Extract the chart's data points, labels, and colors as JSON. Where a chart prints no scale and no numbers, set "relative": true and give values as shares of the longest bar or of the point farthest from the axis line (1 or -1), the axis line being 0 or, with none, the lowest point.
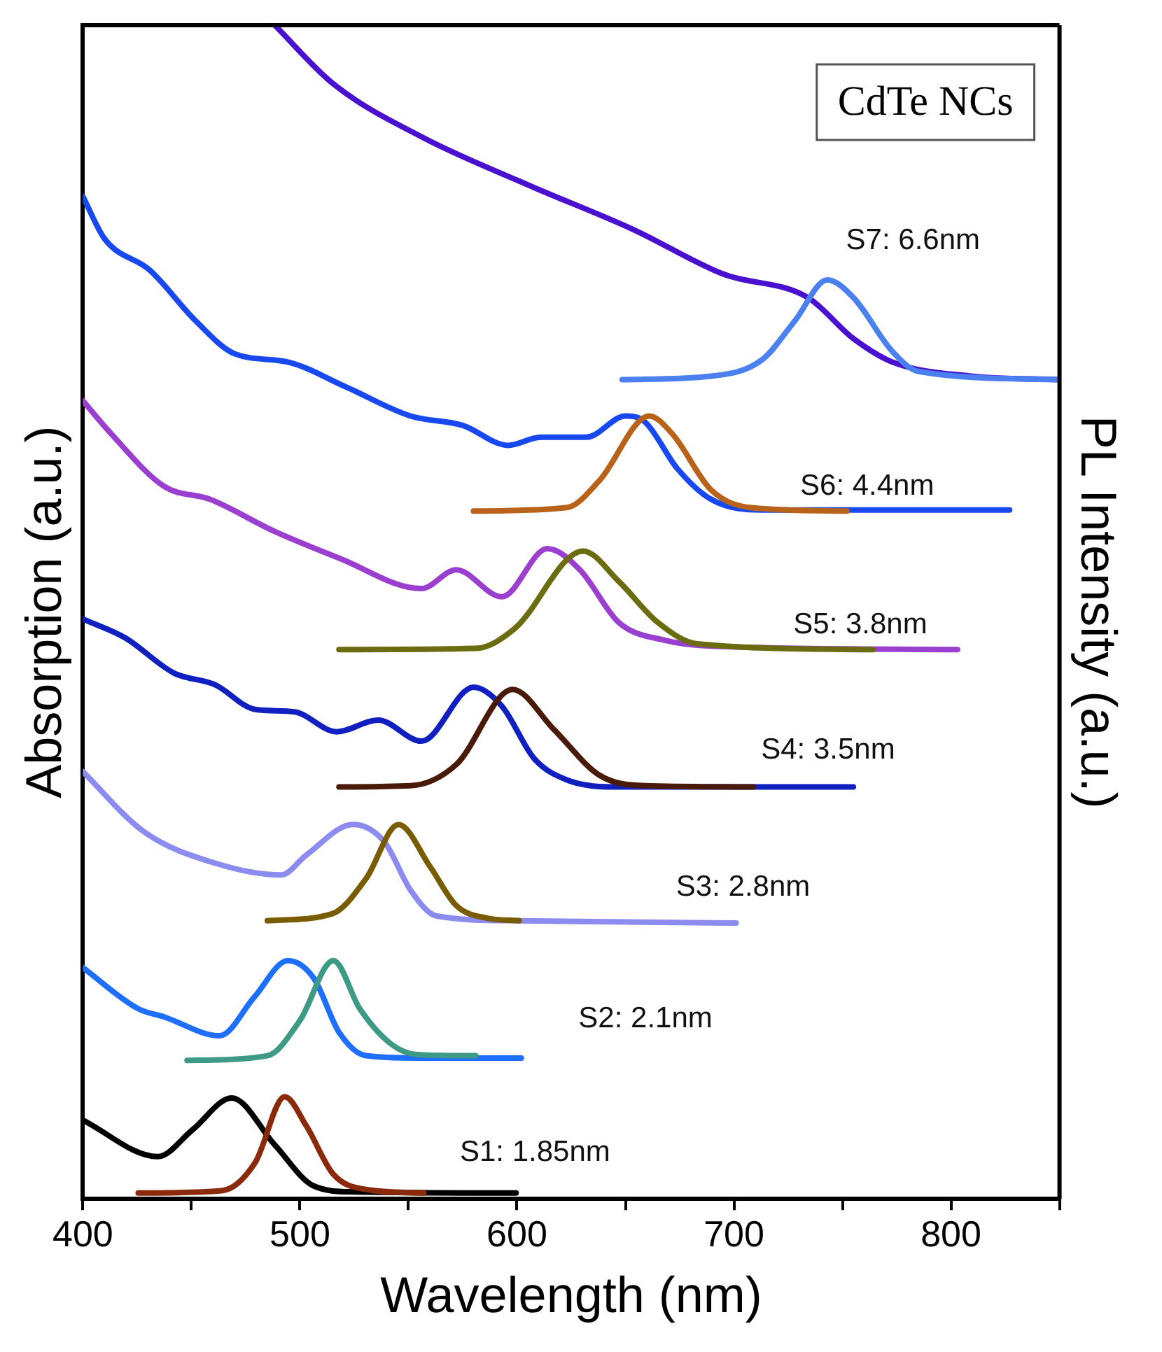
{
  "chart_data": {
    "type": "line",
    "relative": true,
    "xlabel": "Wavelength (nm)",
    "ylabel": "Absorption (a.u.)",
    "y2label": "PL Intensity (a.u.)",
    "xlim": [
      400,
      850
    ],
    "xticks": [
      400,
      {
        "value": 450,
        "label": null
      },
      500,
      {
        "value": 550,
        "label": null
      },
      600,
      {
        "value": 650,
        "label": null
      },
      700,
      {
        "value": 750,
        "label": null
      },
      800,
      {
        "value": 850,
        "label": null
      }
    ],
    "grid": false,
    "legend": false,
    "series": [
      {
        "color": "#000000",
        "x": [
          400,
          434.5,
          450.6,
          468.6,
          488.4,
          506.4,
          524.4,
          599.6
        ],
        "values": [
          0.067,
          0.036,
          0.059,
          0.086,
          0.046,
          0.011,
          0.006,
          0.005
        ]
      },
      {
        "color": "#8b2a0a",
        "x": [
          425.5,
          464,
          479.4,
          493,
          503,
          515.4,
          530.5,
          557
        ],
        "values": [
          0.005,
          0.007,
          0.031,
          0.087,
          0.062,
          0.021,
          0.008,
          0.005
        ]
      },
      {
        "color": "#1f6fff",
        "x": [
          400,
          425.5,
          437.5,
          463,
          479,
          494.4,
          506.4,
          518,
          530.5,
          554,
          602
        ],
        "values": [
          0.197,
          0.162,
          0.155,
          0.139,
          0.172,
          0.203,
          0.188,
          0.142,
          0.122,
          0.12,
          0.12
        ]
      },
      {
        "color": "#3d9a85",
        "x": [
          448,
          485,
          500,
          515.4,
          527.6,
          542,
          554,
          581
        ],
        "values": [
          0.118,
          0.122,
          0.152,
          0.203,
          0.162,
          0.132,
          0.123,
          0.122
        ]
      },
      {
        "color": "#8c8cf0",
        "x": [
          400,
          428,
          461,
          491.4,
          503,
          524.4,
          539,
          551,
          563,
          599.6,
          701
        ],
        "values": [
          0.364,
          0.313,
          0.286,
          0.276,
          0.293,
          0.319,
          0.304,
          0.263,
          0.241,
          0.237,
          0.235
        ]
      },
      {
        "color": "#7a5c00",
        "x": [
          485,
          515,
          530.5,
          545.4,
          560,
          572,
          587,
          601
        ],
        "values": [
          0.237,
          0.243,
          0.273,
          0.319,
          0.283,
          0.25,
          0.239,
          0.237
        ]
      },
      {
        "color": "#1020c0",
        "x": [
          400,
          419.5,
          442,
          461,
          479.4,
          497.4,
          517,
          536,
          556,
          580,
          593,
          608,
          623,
          644,
          755
        ],
        "values": [
          0.494,
          0.478,
          0.448,
          0.438,
          0.417,
          0.415,
          0.398,
          0.408,
          0.39,
          0.436,
          0.42,
          0.375,
          0.357,
          0.351,
          0.351
        ]
      },
      {
        "color": "#4a1a08",
        "x": [
          518,
          551,
          572,
          598,
          617,
          638,
          659,
          709
        ],
        "values": [
          0.351,
          0.352,
          0.37,
          0.434,
          0.4,
          0.361,
          0.352,
          0.351
        ]
      },
      {
        "color": "#9b3fd0",
        "x": [
          400,
          413,
          437.5,
          458.6,
          488,
          518,
          556,
          572,
          593,
          614,
          629,
          647,
          668,
          689.6,
          803
        ],
        "values": [
          0.68,
          0.652,
          0.607,
          0.596,
          0.569,
          0.546,
          0.52,
          0.536,
          0.513,
          0.554,
          0.536,
          0.491,
          0.476,
          0.471,
          0.468
        ]
      },
      {
        "color": "#6b6b10",
        "x": [
          518,
          581,
          599,
          630.5,
          647,
          665,
          683,
          764
        ],
        "values": [
          0.468,
          0.469,
          0.486,
          0.552,
          0.526,
          0.491,
          0.473,
          0.468
        ]
      },
      {
        "color": "#1848f0",
        "x": [
          400,
          410,
          431,
          452,
          470,
          494.5,
          521,
          551,
          575,
          596,
          611,
          632,
          650,
          659,
          674,
          689.5,
          713,
          827
        ],
        "values": [
          0.854,
          0.818,
          0.791,
          0.748,
          0.72,
          0.713,
          0.692,
          0.667,
          0.659,
          0.642,
          0.649,
          0.649,
          0.667,
          0.662,
          0.622,
          0.596,
          0.587,
          0.587
        ]
      },
      {
        "color": "#b8621a",
        "x": [
          580,
          623,
          638,
          661,
          671.5,
          689.5,
          707.5,
          752
        ],
        "values": [
          0.586,
          0.589,
          0.612,
          0.667,
          0.652,
          0.604,
          0.589,
          0.586
        ]
      },
      {
        "color": "#4a10d0",
        "x": [
          488.4,
          515.4,
          557,
          605,
          653.5,
          695,
          734,
          755,
          773,
          809,
          850
        ],
        "values": [
          1.0,
          0.95,
          0.904,
          0.864,
          0.826,
          0.788,
          0.768,
          0.733,
          0.713,
          0.701,
          0.698
        ]
      },
      {
        "color": "#4a80f0",
        "x": [
          648.5,
          689.5,
          713,
          728,
          743,
          755,
          773,
          785,
          850
        ],
        "values": [
          0.698,
          0.701,
          0.715,
          0.748,
          0.783,
          0.768,
          0.722,
          0.705,
          0.698
        ]
      }
    ],
    "annotations": [
      "CdTe NCs",
      "S7: 6.6nm",
      "S6: 4.4nm",
      "S5: 3.8nm",
      "S4: 3.5nm",
      "S3: 2.8nm",
      "S2: 2.1nm",
      "S1: 1.85nm"
    ]
  }
}
